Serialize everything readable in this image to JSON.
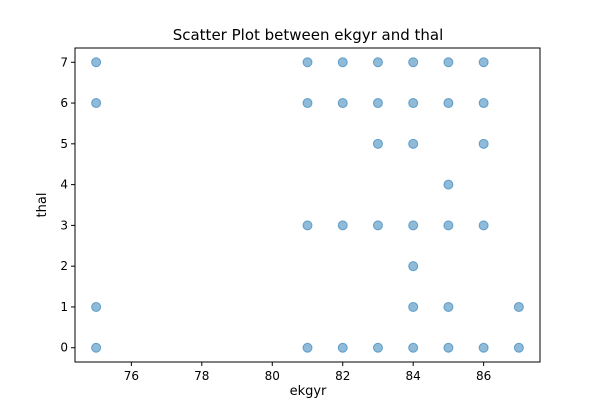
{
  "chart_data": {
    "type": "scatter",
    "title": "Scatter Plot between ekgyr and thal",
    "xlabel": "ekgyr",
    "ylabel": "thal",
    "xlim": [
      74.4,
      87.6
    ],
    "ylim": [
      -0.35,
      7.35
    ],
    "xticks": [
      76,
      78,
      80,
      82,
      84,
      86
    ],
    "yticks": [
      0,
      1,
      2,
      3,
      4,
      5,
      6,
      7
    ],
    "grid": false,
    "marker_color": "#1f77b4",
    "marker_alpha": 0.5,
    "points": [
      {
        "x": 75,
        "y": 7
      },
      {
        "x": 75,
        "y": 6
      },
      {
        "x": 75,
        "y": 1
      },
      {
        "x": 75,
        "y": 0
      },
      {
        "x": 81,
        "y": 7
      },
      {
        "x": 81,
        "y": 6
      },
      {
        "x": 81,
        "y": 3
      },
      {
        "x": 81,
        "y": 0
      },
      {
        "x": 82,
        "y": 7
      },
      {
        "x": 82,
        "y": 6
      },
      {
        "x": 82,
        "y": 3
      },
      {
        "x": 82,
        "y": 0
      },
      {
        "x": 83,
        "y": 7
      },
      {
        "x": 83,
        "y": 6
      },
      {
        "x": 83,
        "y": 5
      },
      {
        "x": 83,
        "y": 3
      },
      {
        "x": 83,
        "y": 0
      },
      {
        "x": 84,
        "y": 7
      },
      {
        "x": 84,
        "y": 6
      },
      {
        "x": 84,
        "y": 5
      },
      {
        "x": 84,
        "y": 3
      },
      {
        "x": 84,
        "y": 2
      },
      {
        "x": 84,
        "y": 1
      },
      {
        "x": 84,
        "y": 0
      },
      {
        "x": 85,
        "y": 7
      },
      {
        "x": 85,
        "y": 6
      },
      {
        "x": 85,
        "y": 4
      },
      {
        "x": 85,
        "y": 3
      },
      {
        "x": 85,
        "y": 1
      },
      {
        "x": 85,
        "y": 0
      },
      {
        "x": 86,
        "y": 7
      },
      {
        "x": 86,
        "y": 6
      },
      {
        "x": 86,
        "y": 5
      },
      {
        "x": 86,
        "y": 3
      },
      {
        "x": 86,
        "y": 0
      },
      {
        "x": 87,
        "y": 1
      },
      {
        "x": 87,
        "y": 0
      }
    ]
  }
}
